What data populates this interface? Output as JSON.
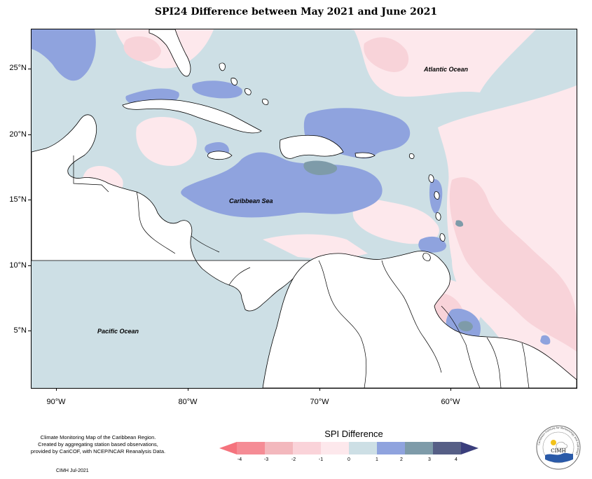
{
  "title": "SPI24 Difference between May 2021 and June 2021",
  "map": {
    "labels": {
      "atlantic": "Atlantic Ocean",
      "caribbean": "Caribbean Sea",
      "pacific": "Pacific Ocean"
    },
    "y_ticks": [
      "25°N",
      "20°N",
      "15°N",
      "10°N",
      "5°N"
    ],
    "x_ticks": [
      "90°W",
      "80°W",
      "70°W",
      "60°W"
    ],
    "colors": {
      "land": "#ffffff",
      "near_zero_positive": "#cddfe5",
      "near_zero_negative": "#fde8ec",
      "neg_1_2": "#f8d3d9",
      "pos_1_2": "#8fa3de",
      "pos_2_3": "#7e9ba9",
      "coast": "#000000"
    }
  },
  "info": {
    "line1": "Climate Monitoring Map of the Caribbean Region.",
    "line2": "Created by aggregating station based observations,",
    "line3": "provided by CariCOF, with NCEP/NCAR Reanalysis Data.",
    "credit": "CIMH Jul-2021"
  },
  "legend": {
    "title": "SPI Difference",
    "ticks": [
      "-4",
      "-3",
      "-2",
      "-1",
      "0",
      "1",
      "2",
      "3",
      "4"
    ],
    "colors": [
      "#f58c95",
      "#f3b8bd",
      "#fad3d9",
      "#fde8ec",
      "#cddfe5",
      "#8fa3de",
      "#7e9ba9",
      "#565f86"
    ],
    "left_arrow_color": "#f5737d",
    "right_arrow_color": "#3a3e7c"
  },
  "logo": {
    "text": "CIMH",
    "ring_text": "Caribbean Institute for Meteorology and Hydrology"
  }
}
